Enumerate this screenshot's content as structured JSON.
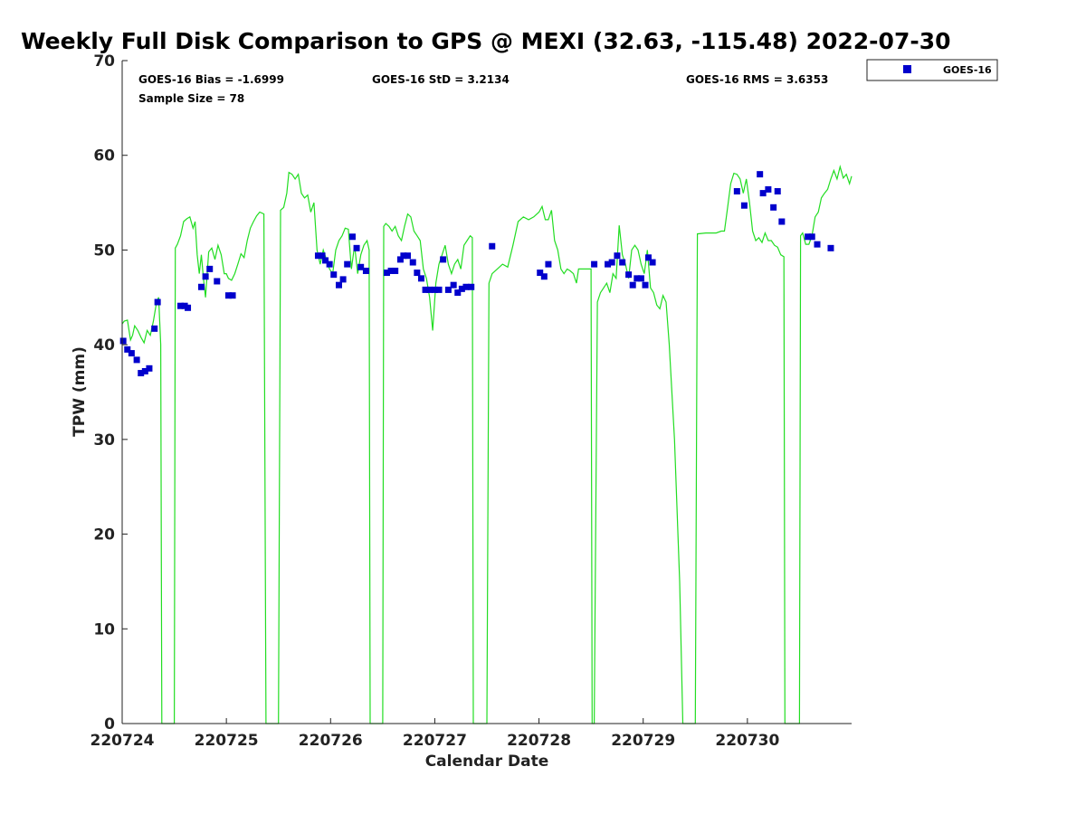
{
  "chart_data": {
    "type": "scatter",
    "title": "Weekly Full Disk Comparison to GPS @ MEXI (32.63, -115.48) 2022-07-30",
    "xlabel": "Calendar Date",
    "ylabel": "TPW (mm)",
    "xlim": [
      0,
      7
    ],
    "ylim": [
      0,
      70
    ],
    "x_tick_values": [
      0,
      1,
      2,
      3,
      4,
      5,
      6
    ],
    "x_tick_labels": [
      "220724",
      "220725",
      "220726",
      "220727",
      "220728",
      "220729",
      "220730"
    ],
    "y_ticks": [
      0,
      10,
      20,
      30,
      40,
      50,
      60,
      70
    ],
    "grid": false,
    "legend_position": "top-right",
    "stats": {
      "bias": "GOES-16 Bias = -1.6999",
      "std": "GOES-16 StD = 3.2134",
      "rms": "GOES-16 RMS = 3.6353",
      "sample": "Sample Size = 78"
    },
    "series": [
      {
        "name": "GOES-16",
        "kind": "scatter",
        "color": "#0000cc",
        "x": [
          0.01,
          0.05,
          0.09,
          0.14,
          0.18,
          0.22,
          0.26,
          0.31,
          0.34,
          0.56,
          0.6,
          0.63,
          0.76,
          0.8,
          0.84,
          0.91,
          1.02,
          1.06,
          1.88,
          1.92,
          1.95,
          1.99,
          2.03,
          2.08,
          2.12,
          2.16,
          2.21,
          2.25,
          2.29,
          2.34,
          2.54,
          2.58,
          2.62,
          2.67,
          2.7,
          2.74,
          2.79,
          2.83,
          2.87,
          2.91,
          2.95,
          3.0,
          3.04,
          3.08,
          3.13,
          3.18,
          3.22,
          3.26,
          3.3,
          3.35,
          3.55,
          4.01,
          4.05,
          4.09,
          4.53,
          4.66,
          4.7,
          4.75,
          4.8,
          4.86,
          4.9,
          4.94,
          4.98,
          5.02,
          5.05,
          5.09,
          5.9,
          5.97,
          6.12,
          6.15,
          6.2,
          6.25,
          6.29,
          6.33,
          6.58,
          6.62,
          6.67,
          6.8
        ],
        "y": [
          40.4,
          39.5,
          39.1,
          38.4,
          37.0,
          37.2,
          37.5,
          41.7,
          44.5,
          44.1,
          44.1,
          43.9,
          46.1,
          47.2,
          48.0,
          46.7,
          45.2,
          45.2,
          49.4,
          49.4,
          48.9,
          48.5,
          47.4,
          46.3,
          46.9,
          48.5,
          51.4,
          50.2,
          48.2,
          47.8,
          47.6,
          47.8,
          47.8,
          49.0,
          49.4,
          49.4,
          48.7,
          47.6,
          47.0,
          45.8,
          45.8,
          45.8,
          45.8,
          49.0,
          45.8,
          46.3,
          45.5,
          45.9,
          46.1,
          46.1,
          50.4,
          47.6,
          47.2,
          48.5,
          48.5,
          48.5,
          48.7,
          49.4,
          48.7,
          47.4,
          46.3,
          47.0,
          47.0,
          46.3,
          49.2,
          48.7,
          56.2,
          54.7,
          58.0,
          56.0,
          56.4,
          54.5,
          56.2,
          53.0,
          51.4,
          51.4,
          50.6,
          50.2
        ]
      },
      {
        "kind": "line",
        "color": "#22dd22",
        "x": [
          0.0,
          0.02,
          0.05,
          0.08,
          0.1,
          0.12,
          0.15,
          0.18,
          0.21,
          0.24,
          0.27,
          0.3,
          0.33,
          0.35,
          0.37,
          0.38,
          0.5,
          0.51,
          0.53,
          0.56,
          0.59,
          0.62,
          0.65,
          0.68,
          0.7,
          0.72,
          0.74,
          0.76,
          0.78,
          0.8,
          0.83,
          0.86,
          0.89,
          0.92,
          0.95,
          0.98,
          1.0,
          1.02,
          1.05,
          1.08,
          1.11,
          1.14,
          1.17,
          1.2,
          1.23,
          1.26,
          1.29,
          1.32,
          1.36,
          1.38,
          1.5,
          1.52,
          1.55,
          1.58,
          1.6,
          1.63,
          1.66,
          1.69,
          1.72,
          1.75,
          1.78,
          1.81,
          1.84,
          1.87,
          1.9,
          1.93,
          1.96,
          1.99,
          2.02,
          2.05,
          2.08,
          2.11,
          2.14,
          2.17,
          2.2,
          2.23,
          2.26,
          2.29,
          2.32,
          2.35,
          2.37,
          2.38,
          2.5,
          2.51,
          2.53,
          2.56,
          2.59,
          2.62,
          2.65,
          2.68,
          2.71,
          2.74,
          2.77,
          2.8,
          2.83,
          2.86,
          2.89,
          2.92,
          2.95,
          2.98,
          3.01,
          3.04,
          3.07,
          3.1,
          3.13,
          3.16,
          3.19,
          3.22,
          3.25,
          3.28,
          3.31,
          3.34,
          3.36,
          3.37,
          3.5,
          3.52,
          3.55,
          3.6,
          3.65,
          3.7,
          3.75,
          3.8,
          3.85,
          3.9,
          3.95,
          4.0,
          4.03,
          4.06,
          4.09,
          4.12,
          4.15,
          4.18,
          4.21,
          4.24,
          4.27,
          4.3,
          4.33,
          4.36,
          4.38,
          4.5,
          4.51,
          4.53,
          4.56,
          4.59,
          4.62,
          4.65,
          4.68,
          4.71,
          4.74,
          4.77,
          4.8,
          4.83,
          4.86,
          4.89,
          4.92,
          4.95,
          4.98,
          5.01,
          5.04,
          5.07,
          5.1,
          5.13,
          5.16,
          5.19,
          5.22,
          5.25,
          5.3,
          5.35,
          5.38,
          5.5,
          5.52,
          5.6,
          5.7,
          5.75,
          5.78,
          5.81,
          5.84,
          5.87,
          5.9,
          5.93,
          5.96,
          5.99,
          6.02,
          6.05,
          6.08,
          6.11,
          6.14,
          6.17,
          6.2,
          6.23,
          6.26,
          6.29,
          6.32,
          6.35,
          6.36,
          6.5,
          6.51,
          6.53,
          6.56,
          6.59,
          6.62,
          6.65,
          6.68,
          6.71,
          6.74,
          6.77,
          6.8,
          6.83,
          6.86,
          6.89,
          6.92,
          6.95,
          6.98,
          7.0
        ],
        "y": [
          42.2,
          42.5,
          42.6,
          40.5,
          41.0,
          42.0,
          41.5,
          40.8,
          40.2,
          41.5,
          41.0,
          42.5,
          44.5,
          45.0,
          40.0,
          0.0,
          0.0,
          50.2,
          50.6,
          51.5,
          53.0,
          53.3,
          53.5,
          52.3,
          53.0,
          49.5,
          47.5,
          49.5,
          47.0,
          45.0,
          49.8,
          50.2,
          49.0,
          50.5,
          49.5,
          47.5,
          47.5,
          47.0,
          46.8,
          47.5,
          48.5,
          49.6,
          49.2,
          51.0,
          52.3,
          53.0,
          53.6,
          54.0,
          53.8,
          0.0,
          0.0,
          54.2,
          54.5,
          56.0,
          58.2,
          58.0,
          57.5,
          58.0,
          56.0,
          55.5,
          55.8,
          54.0,
          55.0,
          50.0,
          48.5,
          50.0,
          49.0,
          48.0,
          47.5,
          50.0,
          51.0,
          51.5,
          52.3,
          52.2,
          48.0,
          50.5,
          47.5,
          49.5,
          50.5,
          51.0,
          50.0,
          0.0,
          0.0,
          52.5,
          52.8,
          52.5,
          52.0,
          52.5,
          51.5,
          51.0,
          52.5,
          53.8,
          53.5,
          52.0,
          51.5,
          51.0,
          48.0,
          47.0,
          45.0,
          41.5,
          46.5,
          48.5,
          49.5,
          50.5,
          48.5,
          47.5,
          48.5,
          49.0,
          48.0,
          50.5,
          51.0,
          51.5,
          51.3,
          0.0,
          0.0,
          46.5,
          47.5,
          48.0,
          48.5,
          48.2,
          50.5,
          53.0,
          53.5,
          53.2,
          53.5,
          54.0,
          54.6,
          53.2,
          53.2,
          54.2,
          51.0,
          50.0,
          48.0,
          47.5,
          48.0,
          47.8,
          47.5,
          46.5,
          48.0,
          48.0,
          0.0,
          0.0,
          44.5,
          45.5,
          46.0,
          46.5,
          45.5,
          47.5,
          47.0,
          52.6,
          49.5,
          48.5,
          47.0,
          50.0,
          50.5,
          50.0,
          48.5,
          47.5,
          50.0,
          46.0,
          45.5,
          44.2,
          43.8,
          45.2,
          44.5,
          40.0,
          30.0,
          15.0,
          0.0,
          0.0,
          51.7,
          51.8,
          51.8,
          52.0,
          52.0,
          54.5,
          57.0,
          58.1,
          58.0,
          57.5,
          56.0,
          57.5,
          55.0,
          52.0,
          51.0,
          51.3,
          50.8,
          51.8,
          51.0,
          51.0,
          50.5,
          50.3,
          49.5,
          49.3,
          0.0,
          0.0,
          51.5,
          51.8,
          50.6,
          50.6,
          51.5,
          53.5,
          54.0,
          55.5,
          56.0,
          56.4,
          57.5,
          58.4,
          57.5,
          58.8,
          57.6,
          58.0,
          57.0,
          57.8
        ]
      }
    ]
  },
  "legend": {
    "label": "GOES-16",
    "marker_color": "#0000cc"
  },
  "line_color": "#22dd22",
  "axis_color": "#222222"
}
